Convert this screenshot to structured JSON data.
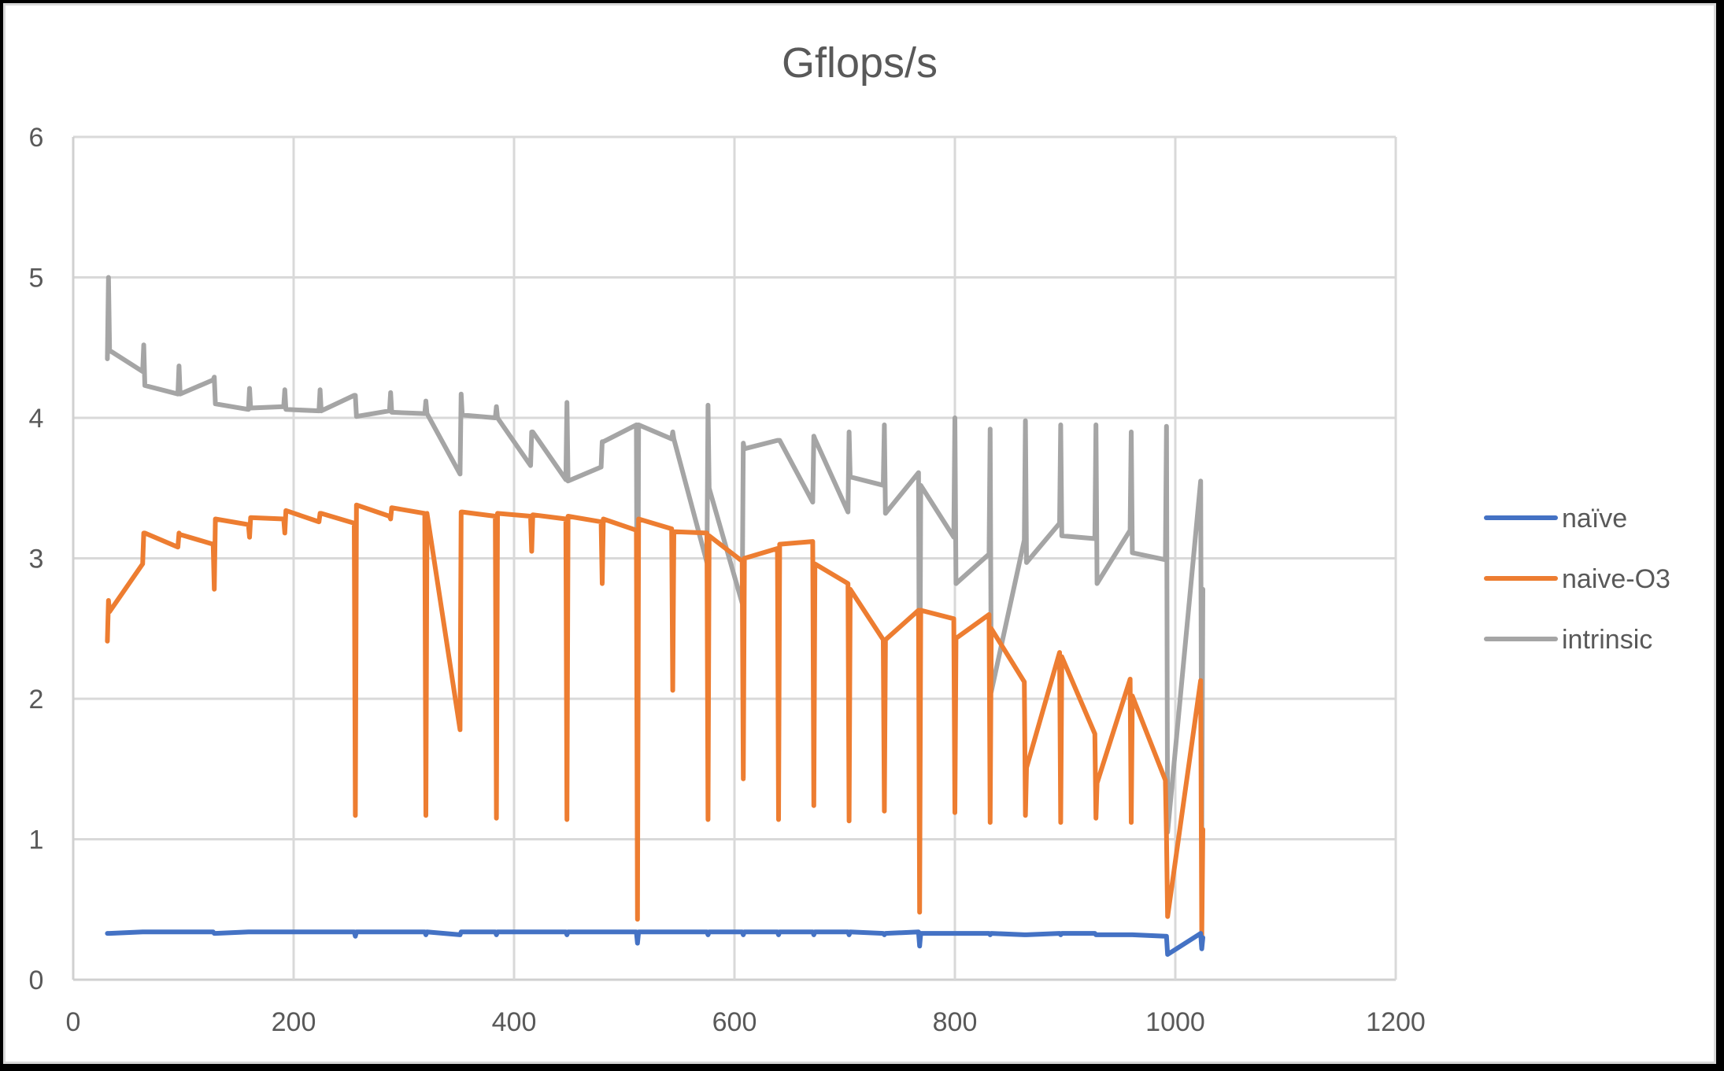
{
  "chart_data": {
    "type": "line",
    "title": "Gflops/s",
    "xlabel": "",
    "ylabel": "",
    "xlim": [
      0,
      1200
    ],
    "ylim": [
      0,
      6
    ],
    "x_ticks": [
      0,
      200,
      400,
      600,
      800,
      1000,
      1200
    ],
    "y_ticks": [
      0,
      1,
      2,
      3,
      4,
      5,
      6
    ],
    "grid": true,
    "legend_position": "right",
    "x": [
      31,
      32,
      33,
      63,
      64,
      65,
      95,
      96,
      97,
      127,
      128,
      129,
      159,
      160,
      161,
      191,
      192,
      193,
      223,
      224,
      225,
      255,
      256,
      257,
      287,
      288,
      289,
      319,
      320,
      321,
      351,
      352,
      353,
      383,
      384,
      385,
      415,
      416,
      417,
      447,
      448,
      449,
      479,
      480,
      481,
      511,
      512,
      513,
      543,
      544,
      545,
      575,
      576,
      577,
      607,
      608,
      609,
      639,
      640,
      641,
      671,
      672,
      673,
      703,
      704,
      705,
      735,
      736,
      737,
      767,
      768,
      769,
      799,
      800,
      801,
      831,
      832,
      833,
      863,
      864,
      865,
      895,
      896,
      897,
      927,
      928,
      929,
      959,
      960,
      961,
      991,
      992,
      993,
      1023,
      1024,
      1025
    ],
    "series": [
      {
        "name": "naïve",
        "color": "#4472C4",
        "values": [
          0.33,
          0.33,
          0.33,
          0.34,
          0.34,
          0.34,
          0.34,
          0.34,
          0.34,
          0.34,
          0.33,
          0.33,
          0.34,
          0.34,
          0.34,
          0.34,
          0.34,
          0.34,
          0.34,
          0.34,
          0.34,
          0.34,
          0.31,
          0.34,
          0.34,
          0.34,
          0.34,
          0.34,
          0.32,
          0.34,
          0.32,
          0.34,
          0.34,
          0.34,
          0.32,
          0.34,
          0.34,
          0.34,
          0.34,
          0.34,
          0.32,
          0.34,
          0.34,
          0.34,
          0.34,
          0.34,
          0.26,
          0.34,
          0.34,
          0.34,
          0.34,
          0.34,
          0.32,
          0.34,
          0.34,
          0.32,
          0.34,
          0.34,
          0.32,
          0.34,
          0.34,
          0.32,
          0.34,
          0.34,
          0.32,
          0.34,
          0.33,
          0.32,
          0.33,
          0.34,
          0.24,
          0.33,
          0.33,
          0.33,
          0.33,
          0.33,
          0.32,
          0.33,
          0.32,
          0.32,
          0.32,
          0.33,
          0.32,
          0.33,
          0.33,
          0.32,
          0.32,
          0.32,
          0.32,
          0.32,
          0.31,
          0.31,
          0.18,
          0.33,
          0.22,
          0.3
        ]
      },
      {
        "name": "naive-O3",
        "color": "#ED7D31",
        "values": [
          2.41,
          2.7,
          2.62,
          2.96,
          3.18,
          3.18,
          3.08,
          3.18,
          3.17,
          3.1,
          2.78,
          3.28,
          3.24,
          3.15,
          3.29,
          3.28,
          3.18,
          3.34,
          3.26,
          3.32,
          3.32,
          3.25,
          1.17,
          3.38,
          3.3,
          3.28,
          3.36,
          3.32,
          1.17,
          3.32,
          1.78,
          3.33,
          3.33,
          3.3,
          1.15,
          3.32,
          3.3,
          3.05,
          3.31,
          3.28,
          1.14,
          3.3,
          3.26,
          2.82,
          3.28,
          3.2,
          0.43,
          3.28,
          3.21,
          2.06,
          3.19,
          3.18,
          1.14,
          3.16,
          2.98,
          1.43,
          3.0,
          3.07,
          1.14,
          3.1,
          3.12,
          1.24,
          2.96,
          2.82,
          1.13,
          2.78,
          2.42,
          1.2,
          2.42,
          2.63,
          0.48,
          2.63,
          2.57,
          1.19,
          2.43,
          2.6,
          1.12,
          2.5,
          2.12,
          1.17,
          1.51,
          2.33,
          1.12,
          2.3,
          1.75,
          1.15,
          1.4,
          2.14,
          1.12,
          2.02,
          1.42,
          1.02,
          0.45,
          2.13,
          0.3,
          1.07
        ]
      },
      {
        "name": "intrinsic",
        "color": "#A5A5A5",
        "values": [
          4.42,
          5.0,
          4.48,
          4.33,
          4.52,
          4.23,
          4.17,
          4.37,
          4.17,
          4.27,
          4.29,
          4.1,
          4.06,
          4.21,
          4.07,
          4.08,
          4.2,
          4.06,
          4.05,
          4.2,
          4.05,
          4.16,
          4.16,
          4.01,
          4.05,
          4.18,
          4.04,
          4.03,
          4.12,
          4.03,
          3.6,
          4.17,
          4.02,
          4.0,
          4.08,
          4.0,
          3.66,
          3.9,
          3.9,
          3.56,
          4.11,
          3.55,
          3.65,
          3.83,
          3.83,
          3.95,
          1.5,
          3.95,
          3.85,
          3.9,
          3.85,
          2.97,
          4.09,
          3.5,
          2.68,
          3.82,
          3.78,
          3.84,
          3.84,
          3.84,
          3.4,
          3.87,
          3.85,
          3.33,
          3.9,
          3.58,
          3.52,
          3.95,
          3.32,
          3.61,
          1.45,
          3.52,
          3.15,
          4.0,
          2.82,
          3.03,
          3.92,
          2.05,
          3.13,
          3.98,
          2.97,
          3.25,
          3.95,
          3.16,
          3.14,
          3.95,
          2.82,
          3.2,
          3.9,
          3.04,
          2.99,
          3.94,
          1.05,
          3.55,
          1.05,
          2.78
        ]
      }
    ]
  },
  "legend": {
    "items": [
      {
        "label": "naïve",
        "color": "#4472C4"
      },
      {
        "label": "naive-O3",
        "color": "#ED7D31"
      },
      {
        "label": "intrinsic",
        "color": "#A5A5A5"
      }
    ]
  }
}
